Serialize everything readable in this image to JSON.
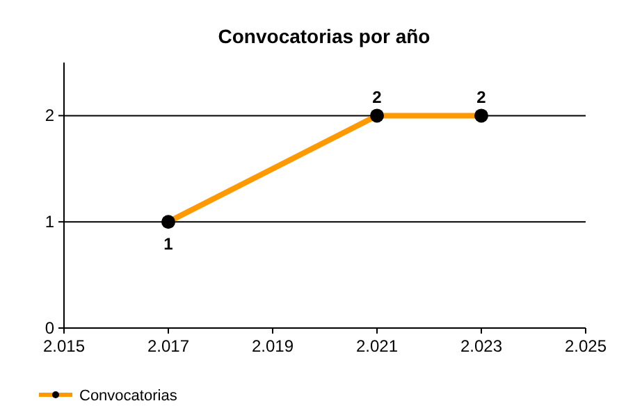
{
  "chart_data": {
    "type": "line",
    "title": "Convocatorias por año",
    "x": [
      2017,
      2021,
      2023
    ],
    "series": [
      {
        "name": "Convocatorias",
        "color": "#ff9900",
        "values": [
          1,
          2,
          2
        ]
      }
    ],
    "xlim": [
      2015,
      2025
    ],
    "xticks": [
      {
        "value": 2015,
        "label": "2.015"
      },
      {
        "value": 2017,
        "label": "2.017"
      },
      {
        "value": 2019,
        "label": "2.019"
      },
      {
        "value": 2021,
        "label": "2.021"
      },
      {
        "value": 2023,
        "label": "2.023"
      },
      {
        "value": 2025,
        "label": "2.025"
      }
    ],
    "ylim": [
      0,
      2.5
    ],
    "yticks": [
      0,
      1,
      2
    ],
    "grid": "y",
    "marker": "circle",
    "line_style": "solid",
    "data_labels": true,
    "legend": "bottom left"
  }
}
